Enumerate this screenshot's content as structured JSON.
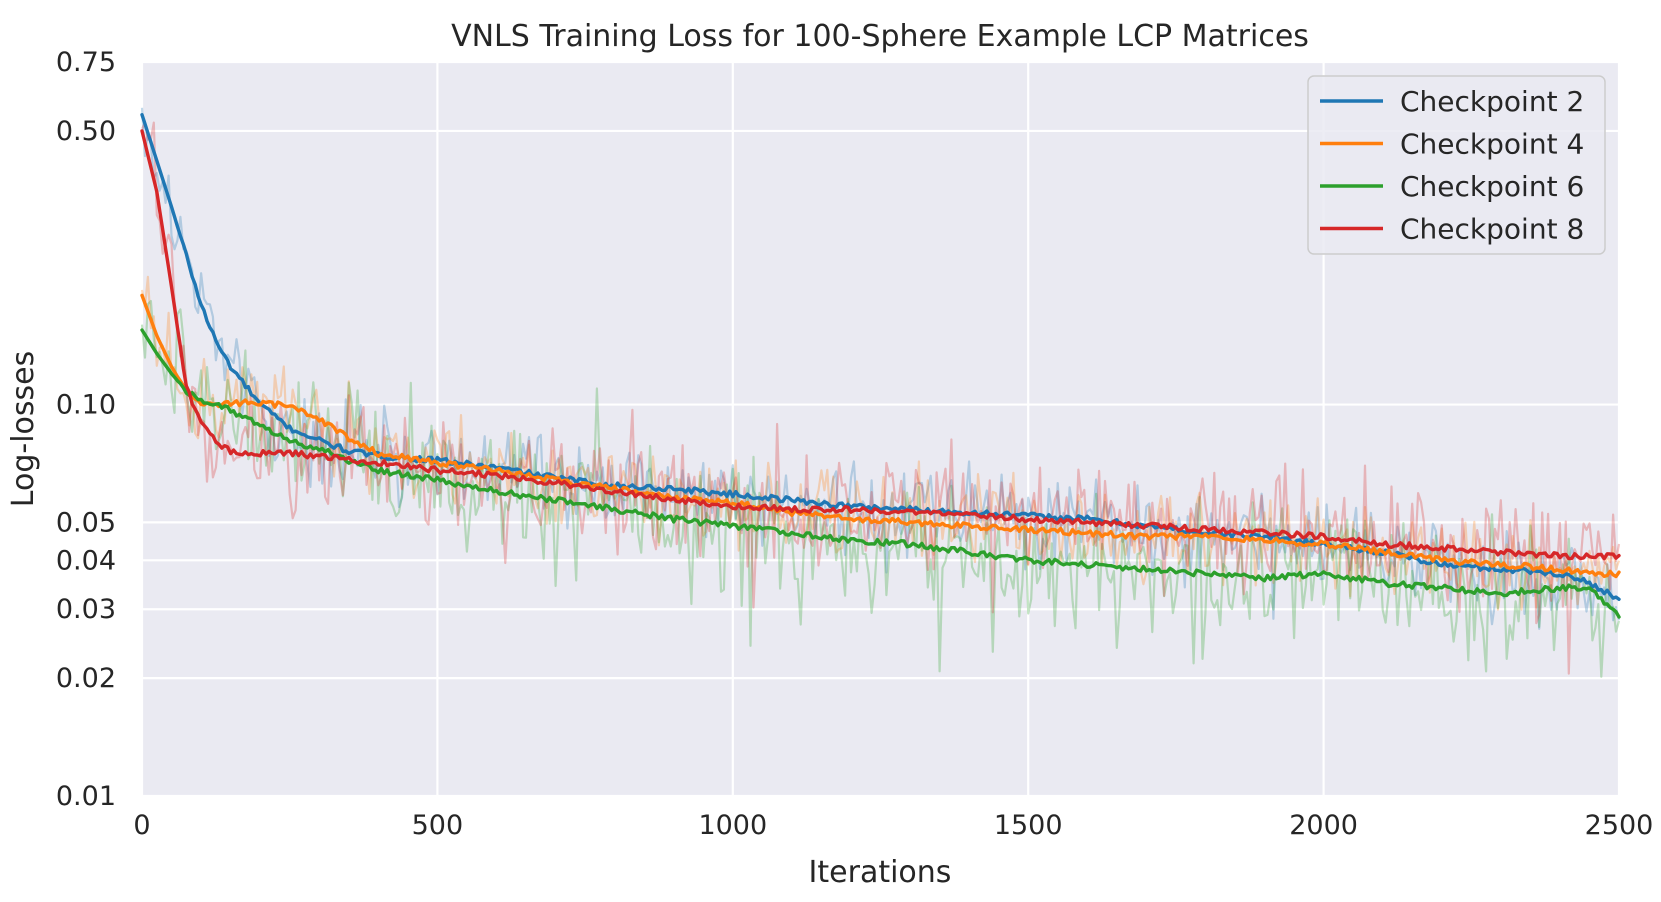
{
  "chart_data": {
    "type": "line",
    "title": "VNLS Training Loss for 100-Sphere Example LCP Matrices",
    "xlabel": "Iterations",
    "ylabel": "Log-losses",
    "xlim": [
      0,
      2500
    ],
    "ylim": [
      0.01,
      0.75
    ],
    "yscale": "log",
    "grid": true,
    "legend_position": "top-right",
    "x_ticks": [
      0,
      500,
      1000,
      1500,
      2000,
      2500
    ],
    "x_tick_labels": [
      "0",
      "500",
      "1000",
      "1500",
      "2000",
      "2500"
    ],
    "y_ticks": [
      0.01,
      0.02,
      0.03,
      0.04,
      0.05,
      0.1,
      0.5,
      0.75
    ],
    "y_tick_labels": [
      "0.01",
      "0.02",
      "0.03",
      "0.04",
      "0.05",
      "0.10",
      "0.50",
      "0.75"
    ],
    "x": [
      0,
      25,
      50,
      75,
      100,
      125,
      150,
      200,
      250,
      300,
      350,
      400,
      500,
      600,
      700,
      800,
      900,
      1000,
      1100,
      1200,
      1300,
      1400,
      1500,
      1600,
      1700,
      1800,
      1900,
      2000,
      2100,
      2200,
      2300,
      2400,
      2450,
      2500
    ],
    "series": [
      {
        "name": "Checkpoint 2",
        "color": "#1f77b4",
        "smoothed": [
          0.55,
          0.42,
          0.32,
          0.24,
          0.18,
          0.145,
          0.125,
          0.1,
          0.087,
          0.081,
          0.076,
          0.074,
          0.072,
          0.069,
          0.065,
          0.062,
          0.061,
          0.059,
          0.057,
          0.055,
          0.054,
          0.053,
          0.052,
          0.051,
          0.049,
          0.047,
          0.046,
          0.044,
          0.042,
          0.039,
          0.038,
          0.037,
          0.035,
          0.032
        ],
        "noise_amp": 0.15
      },
      {
        "name": "Checkpoint 4",
        "color": "#ff7f0e",
        "smoothed": [
          0.19,
          0.15,
          0.125,
          0.108,
          0.1,
          0.1,
          0.101,
          0.101,
          0.099,
          0.092,
          0.082,
          0.075,
          0.071,
          0.068,
          0.064,
          0.061,
          0.058,
          0.056,
          0.053,
          0.051,
          0.05,
          0.049,
          0.048,
          0.047,
          0.046,
          0.046,
          0.045,
          0.044,
          0.042,
          0.04,
          0.039,
          0.038,
          0.037,
          0.037
        ],
        "noise_amp": 0.16
      },
      {
        "name": "Checkpoint 6",
        "color": "#2ca02c",
        "smoothed": [
          0.155,
          0.135,
          0.12,
          0.108,
          0.103,
          0.1,
          0.097,
          0.088,
          0.081,
          0.077,
          0.072,
          0.068,
          0.064,
          0.06,
          0.057,
          0.054,
          0.051,
          0.049,
          0.047,
          0.045,
          0.044,
          0.042,
          0.04,
          0.039,
          0.038,
          0.037,
          0.036,
          0.037,
          0.035,
          0.034,
          0.033,
          0.034,
          0.034,
          0.029
        ],
        "noise_amp": 0.24
      },
      {
        "name": "Checkpoint 8",
        "color": "#d62728",
        "smoothed": [
          0.5,
          0.35,
          0.2,
          0.11,
          0.09,
          0.08,
          0.076,
          0.075,
          0.075,
          0.074,
          0.072,
          0.071,
          0.068,
          0.066,
          0.063,
          0.06,
          0.057,
          0.055,
          0.054,
          0.054,
          0.053,
          0.052,
          0.051,
          0.05,
          0.049,
          0.048,
          0.047,
          0.046,
          0.044,
          0.043,
          0.042,
          0.041,
          0.041,
          0.041
        ],
        "noise_amp": 0.2
      }
    ]
  }
}
